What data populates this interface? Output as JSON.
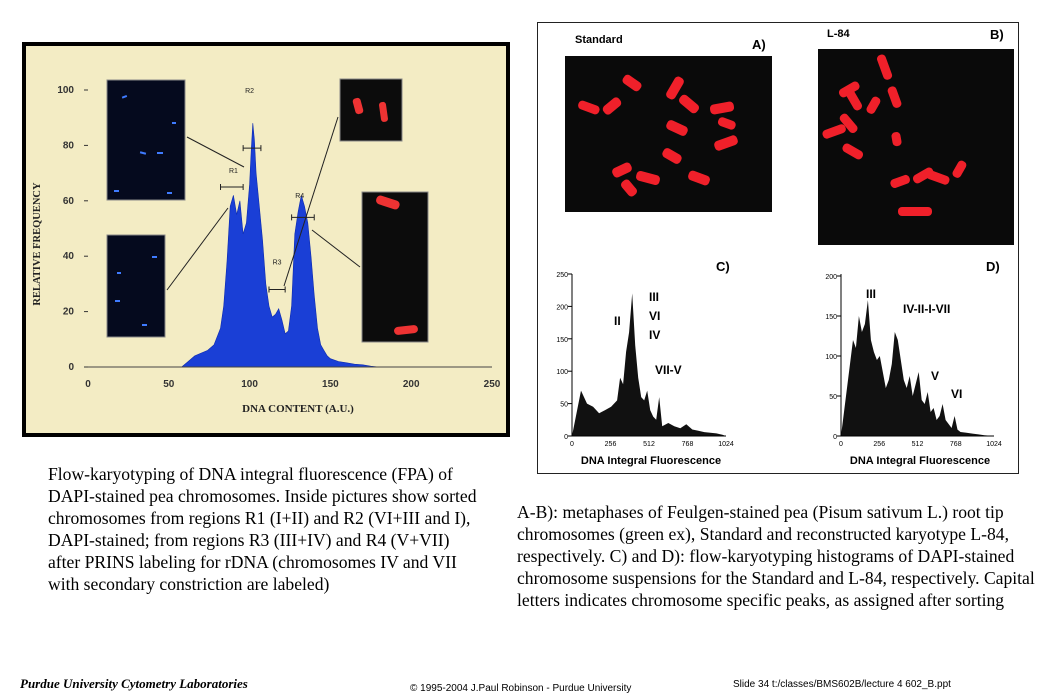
{
  "figure_left": {
    "y_axis_label": "RELATIVE FREQUENCY",
    "x_axis_label": "DNA CONTENT (A.U.)",
    "regions": [
      "R1",
      "R2",
      "R3",
      "R4"
    ]
  },
  "figure_right": {
    "panel_a": {
      "letter": "A)",
      "title": "Standard"
    },
    "panel_b": {
      "letter": "B)",
      "title": "L-84"
    },
    "panel_c": {
      "letter": "C)",
      "x_axis_label": "DNA Integral Fluorescence",
      "peak_labels": [
        "III",
        "VI",
        "IV",
        "II",
        "VII-V"
      ]
    },
    "panel_d": {
      "letter": "D)",
      "x_axis_label": "DNA Integral Fluorescence",
      "peak_labels": [
        "III",
        "IV-II-I-VII",
        "V",
        "VI"
      ]
    }
  },
  "chart_data": [
    {
      "type": "area",
      "xlabel": "DNA CONTENT (A.U.)",
      "ylabel": "RELATIVE FREQUENCY",
      "xlim": [
        0,
        250
      ],
      "ylim": [
        0,
        100
      ],
      "x_ticks": [
        0,
        50,
        100,
        150,
        200,
        250
      ],
      "y_ticks": [
        0,
        20,
        40,
        60,
        80,
        100
      ],
      "grid": false,
      "area_color": "#1a3fd6",
      "x": [
        58,
        62,
        66,
        70,
        74,
        78,
        82,
        84,
        86,
        88,
        90,
        92,
        94,
        96,
        98,
        100,
        101,
        102,
        103,
        104,
        105,
        106,
        108,
        110,
        112,
        114,
        116,
        118,
        120,
        122,
        124,
        126,
        128,
        130,
        132,
        134,
        136,
        138,
        140,
        142,
        144,
        146,
        148,
        150,
        155,
        160,
        165,
        170,
        175,
        180
      ],
      "values": [
        0,
        2,
        4,
        5,
        6,
        8,
        14,
        22,
        38,
        58,
        62,
        55,
        60,
        48,
        52,
        66,
        78,
        88,
        82,
        70,
        64,
        58,
        46,
        30,
        22,
        18,
        19,
        21,
        17,
        12,
        13,
        22,
        48,
        56,
        62,
        58,
        52,
        40,
        26,
        14,
        8,
        6,
        4,
        3,
        2,
        1.5,
        1,
        0.8,
        0.3,
        0
      ],
      "annotations": [
        {
          "text": "R1",
          "x": 90,
          "y": 70
        },
        {
          "text": "R2",
          "x": 100,
          "y": 99
        },
        {
          "text": "R3",
          "x": 117,
          "y": 37
        },
        {
          "text": "R4",
          "x": 131,
          "y": 61
        }
      ]
    },
    {
      "type": "area",
      "panel": "C)",
      "xlabel": "DNA Integral Fluorescence",
      "xlim": [
        0,
        1024
      ],
      "ylim": [
        0,
        250
      ],
      "x_ticks": [
        0,
        256,
        512,
        768,
        1024
      ],
      "y_ticks": [
        0,
        50,
        100,
        150,
        200,
        250
      ],
      "x": [
        0,
        60,
        100,
        140,
        180,
        220,
        260,
        300,
        320,
        340,
        360,
        380,
        400,
        420,
        440,
        460,
        480,
        500,
        520,
        540,
        560,
        580,
        600,
        640,
        680,
        720,
        760,
        800,
        840,
        880,
        920,
        960,
        1000,
        1024
      ],
      "values": [
        0,
        70,
        50,
        45,
        35,
        40,
        45,
        55,
        90,
        80,
        130,
        160,
        220,
        140,
        90,
        60,
        55,
        70,
        40,
        30,
        25,
        60,
        15,
        20,
        15,
        12,
        18,
        10,
        8,
        6,
        5,
        4,
        2,
        0
      ],
      "annotations": [
        "III",
        "VI",
        "IV",
        "II",
        "VII-V"
      ]
    },
    {
      "type": "area",
      "panel": "D)",
      "xlabel": "DNA Integral Fluorescence",
      "xlim": [
        0,
        1024
      ],
      "ylim": [
        0,
        200
      ],
      "x_ticks": [
        0,
        256,
        512,
        768,
        1024
      ],
      "y_ticks": [
        0,
        50,
        100,
        150,
        200
      ],
      "x": [
        0,
        60,
        80,
        100,
        120,
        140,
        160,
        180,
        200,
        220,
        240,
        260,
        280,
        300,
        320,
        340,
        360,
        380,
        400,
        420,
        440,
        460,
        480,
        500,
        520,
        540,
        560,
        580,
        600,
        620,
        640,
        660,
        680,
        700,
        720,
        740,
        760,
        780,
        800,
        840,
        880,
        920,
        960,
        1024
      ],
      "values": [
        0,
        90,
        120,
        110,
        150,
        130,
        140,
        170,
        120,
        105,
        95,
        100,
        80,
        60,
        70,
        90,
        130,
        120,
        95,
        70,
        60,
        75,
        50,
        65,
        80,
        45,
        40,
        55,
        30,
        35,
        20,
        25,
        40,
        20,
        15,
        10,
        25,
        8,
        5,
        4,
        3,
        2,
        1,
        0
      ],
      "annotations": [
        "III",
        "IV-II-I-VII",
        "V",
        "VI"
      ]
    }
  ],
  "captions": {
    "left": "Flow-karyotyping of DNA integral fluorescence (FPA) of DAPI-stained pea chromosomes. Inside pictures show sorted chromosomes from regions R1 (I+II) and R2 (VI+III and I), DAPI-stained; from regions R3 (III+IV) and R4 (V+VII) after PRINS labeling for rDNA (chromosomes IV and VII with secondary constriction are labeled)",
    "right": "A-B): metaphases of Feulgen-stained pea (Pisum sativum L.) root tip chromosomes (green ex), Standard and reconstructed karyotype L-84, respectively. C) and D): flow-karyotyping histograms of DAPI-stained chromosome suspensions for the Standard and L-84, respectively. Capital letters indicates chromosome specific peaks, as assigned after sorting"
  },
  "footer": {
    "left": "Purdue University Cytometry Laboratories",
    "center": "© 1995-2004 J.Paul Robinson - Purdue University",
    "right": "Slide 34  t:/classes/BMS602B/lecture  4 602_B.ppt"
  }
}
